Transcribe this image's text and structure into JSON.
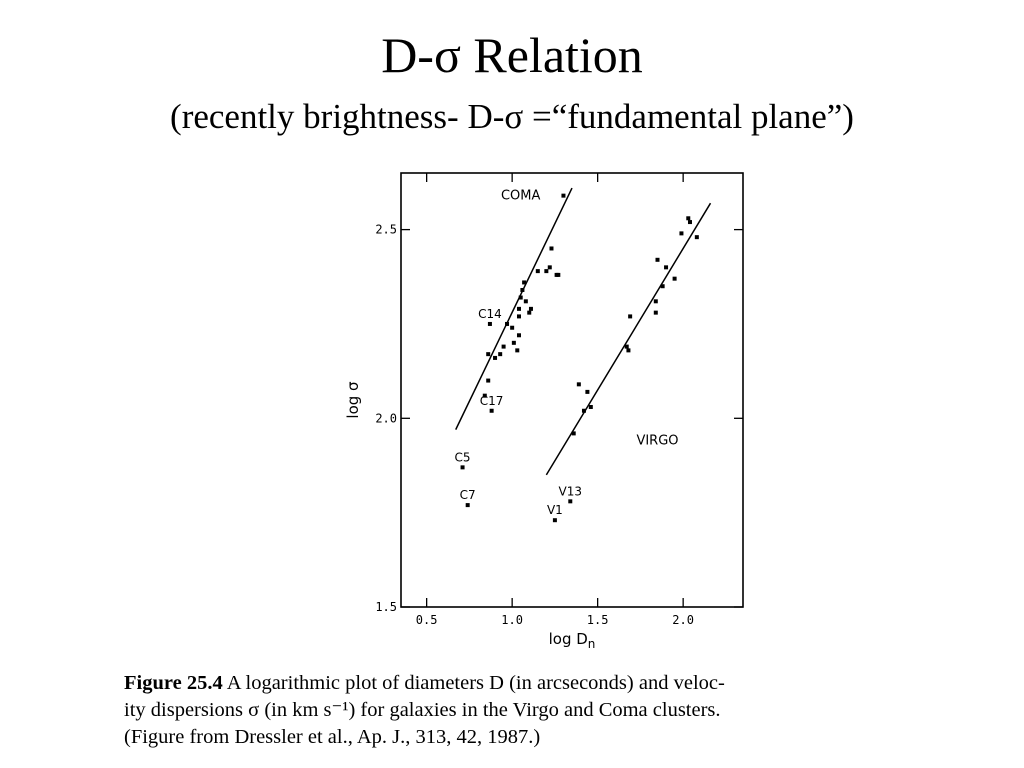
{
  "slide": {
    "title": "D-σ Relation",
    "subtitle": "(recently brightness- D-σ =“fundamental plane”)"
  },
  "caption": {
    "figure_label": "Figure 25.4",
    "line1": "A logarithmic plot of diameters D (in arcseconds) and veloc-",
    "line2": "ity dispersions σ (in km s⁻¹) for galaxies in the Virgo and Coma clusters.",
    "line3": "(Figure from Dressler et al., Ap. J., 313, 42, 1987.)"
  },
  "chart_data": {
    "type": "scatter",
    "xlabel": "log Dn",
    "ylabel": "log σ",
    "xlim": [
      0.35,
      2.35
    ],
    "ylim": [
      1.5,
      2.65
    ],
    "x_ticks": [
      0.5,
      1.0,
      1.5,
      2.0
    ],
    "x_tick_labels": [
      "0.5",
      "1.0",
      "1.5",
      "2.0"
    ],
    "y_ticks": [
      1.5,
      2.0,
      2.5
    ],
    "y_tick_labels": [
      "1.5",
      "2.0",
      "2.5"
    ],
    "grid": false,
    "legend": "none",
    "series": [
      {
        "name": "COMA",
        "points": [
          [
            0.84,
            2.06
          ],
          [
            0.86,
            2.1
          ],
          [
            0.88,
            2.02
          ],
          [
            0.86,
            2.17
          ],
          [
            0.9,
            2.16
          ],
          [
            0.93,
            2.17
          ],
          [
            0.95,
            2.19
          ],
          [
            0.97,
            2.25
          ],
          [
            1.0,
            2.24
          ],
          [
            1.01,
            2.2
          ],
          [
            1.03,
            2.18
          ],
          [
            1.04,
            2.22
          ],
          [
            1.04,
            2.27
          ],
          [
            1.04,
            2.29
          ],
          [
            1.05,
            2.32
          ],
          [
            1.06,
            2.34
          ],
          [
            1.07,
            2.36
          ],
          [
            1.08,
            2.31
          ],
          [
            1.1,
            2.28
          ],
          [
            1.11,
            2.29
          ],
          [
            1.15,
            2.39
          ],
          [
            1.2,
            2.39
          ],
          [
            1.22,
            2.4
          ],
          [
            1.23,
            2.45
          ],
          [
            1.26,
            2.38
          ],
          [
            1.27,
            2.38
          ],
          [
            1.3,
            2.59
          ],
          [
            0.87,
            2.25
          ],
          [
            0.71,
            1.87
          ],
          [
            0.74,
            1.77
          ]
        ],
        "point_labels": [
          {
            "text": "C14",
            "x": 0.87,
            "y": 2.25
          },
          {
            "text": "C17",
            "x": 0.88,
            "y": 2.02
          },
          {
            "text": "C5",
            "x": 0.71,
            "y": 1.87
          },
          {
            "text": "C7",
            "x": 0.74,
            "y": 1.77
          }
        ],
        "fit_line": [
          [
            0.67,
            1.97
          ],
          [
            1.35,
            2.61
          ]
        ]
      },
      {
        "name": "VIRGO",
        "points": [
          [
            1.36,
            1.96
          ],
          [
            1.39,
            2.09
          ],
          [
            1.42,
            2.02
          ],
          [
            1.44,
            2.07
          ],
          [
            1.46,
            2.03
          ],
          [
            1.67,
            2.19
          ],
          [
            1.68,
            2.18
          ],
          [
            1.69,
            2.27
          ],
          [
            1.84,
            2.28
          ],
          [
            1.84,
            2.31
          ],
          [
            1.85,
            2.42
          ],
          [
            1.88,
            2.35
          ],
          [
            1.9,
            2.4
          ],
          [
            1.95,
            2.37
          ],
          [
            1.99,
            2.49
          ],
          [
            2.03,
            2.53
          ],
          [
            2.04,
            2.52
          ],
          [
            2.08,
            2.48
          ],
          [
            1.25,
            1.73
          ],
          [
            1.34,
            1.78
          ]
        ],
        "point_labels": [
          {
            "text": "V13",
            "x": 1.34,
            "y": 1.78
          },
          {
            "text": "V1",
            "x": 1.25,
            "y": 1.73
          }
        ],
        "fit_line": [
          [
            1.2,
            1.85
          ],
          [
            2.16,
            2.57
          ]
        ]
      }
    ],
    "annotations": [
      {
        "text": "COMA",
        "x": 1.05,
        "y": 2.58
      },
      {
        "text": "VIRGO",
        "x": 1.85,
        "y": 1.93
      }
    ]
  }
}
